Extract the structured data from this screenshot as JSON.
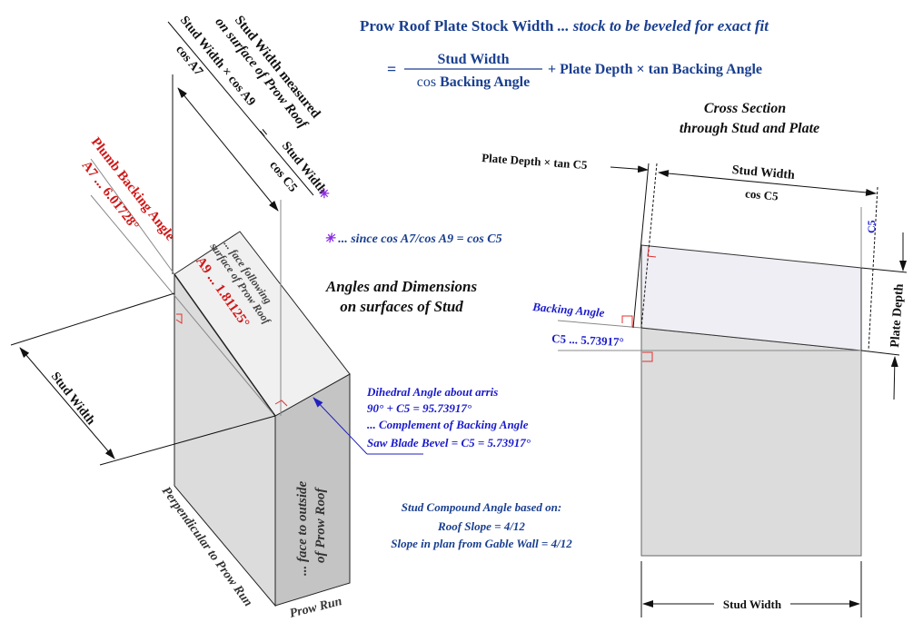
{
  "formula": {
    "title_main": "Prow Roof Plate Stock Width",
    "title_note": "... stock to be beveled for exact fit",
    "equals": "=",
    "numerator": "Stud Width",
    "denominator_cos": "cos",
    "denominator_angle": "Backing Angle",
    "plus_term": "+ Plate Depth × tan Backing Angle"
  },
  "left_labels": {
    "measured_1": "Stud Width measured",
    "measured_2": "on surface of Prow Roof",
    "eq_num": "Stud Width × cos A9",
    "eq_den": "cos A7",
    "eq_sign": "=",
    "eq_rhs_num": "Stud Width",
    "eq_rhs_den": "cos C5",
    "asterisk": "✳",
    "note": "... since cos A7/cos A9 = cos C5",
    "plumb_1": "Plumb Backing Angle",
    "plumb_2": "A7 ... 6.01728°",
    "face_top_1": "... face following",
    "face_top_2": "surface of Prow Roof",
    "a9": "A9 ... 1.81125°",
    "angles_1": "Angles and Dimensions",
    "angles_2": "on surfaces of Stud",
    "stud_width": "Stud Width",
    "perpendicular": "Perpendicular to Prow Run",
    "face_outside_1": "... face to outside",
    "face_outside_2": "of Prow Roof",
    "prow_run": "Prow Run",
    "dihedral": [
      "Dihedral Angle about arris",
      "90° + C5 = 95.73917°",
      "... Complement of Backing Angle",
      "Saw Blade Bevel = C5 = 5.73917°"
    ],
    "compound": [
      "Stud Compound Angle based on:",
      "Roof Slope = 4/12",
      "Slope in plan from Gable Wall = 4/12"
    ]
  },
  "cross_section": {
    "title_1": "Cross Section",
    "title_2": "through Stud and Plate",
    "plate_offset": "Plate Depth × tan C5",
    "top_num": "Stud Width",
    "top_den": "cos C5",
    "c5_small": "C5",
    "plate_depth": "Plate Depth",
    "backing_angle": "Backing Angle",
    "c5_value": "C5 ... 5.73917°",
    "stud_width": "Stud Width"
  },
  "colors": {
    "blue_text": "#1a3f8f",
    "red_text": "#d01818",
    "italic_blue": "#1a1acc",
    "asterisk": "#8a2be2"
  }
}
